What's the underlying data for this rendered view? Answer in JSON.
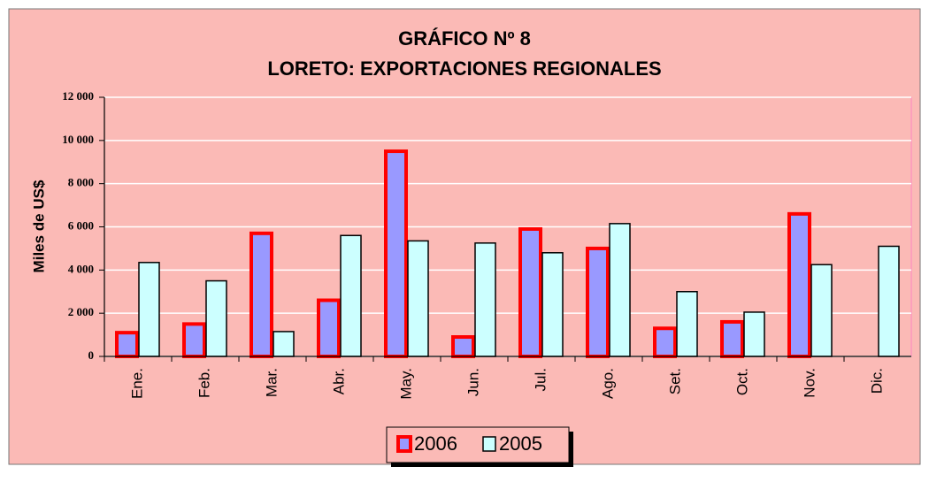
{
  "chart_data": {
    "type": "bar",
    "title": "GRÁFICO Nº 8",
    "subtitle": "LORETO: EXPORTACIONES REGIONALES",
    "y_label": "Miles de US$",
    "categories": [
      "Ene.",
      "Feb.",
      "Mar.",
      "Abr.",
      "May.",
      "Jun.",
      "Jul.",
      "Ago.",
      "Set.",
      "Oct.",
      "Nov.",
      "Dic."
    ],
    "series": [
      {
        "name": "2006",
        "color": "#9999ff",
        "stroke": "#ff0000",
        "values": [
          1100,
          1500,
          5700,
          2600,
          9500,
          900,
          5900,
          5000,
          1300,
          1600,
          6600,
          null
        ]
      },
      {
        "name": "2005",
        "color": "#ccffff",
        "stroke": "#000000",
        "values": [
          4350,
          3500,
          1150,
          5600,
          5350,
          5250,
          4800,
          6150,
          3000,
          2050,
          4250,
          5100
        ]
      }
    ],
    "ylim": [
      0,
      12000
    ],
    "yticks": [
      0,
      {
        "value": 2000,
        "label": "2 000"
      },
      {
        "value": 4000,
        "label": "4 000"
      },
      {
        "value": 6000,
        "label": "6 000"
      },
      {
        "value": 8000,
        "label": "8 000"
      },
      {
        "value": 10000,
        "label": "10 000"
      },
      {
        "value": 12000,
        "label": "12 000"
      }
    ],
    "grid": true,
    "legend": "bottom"
  }
}
